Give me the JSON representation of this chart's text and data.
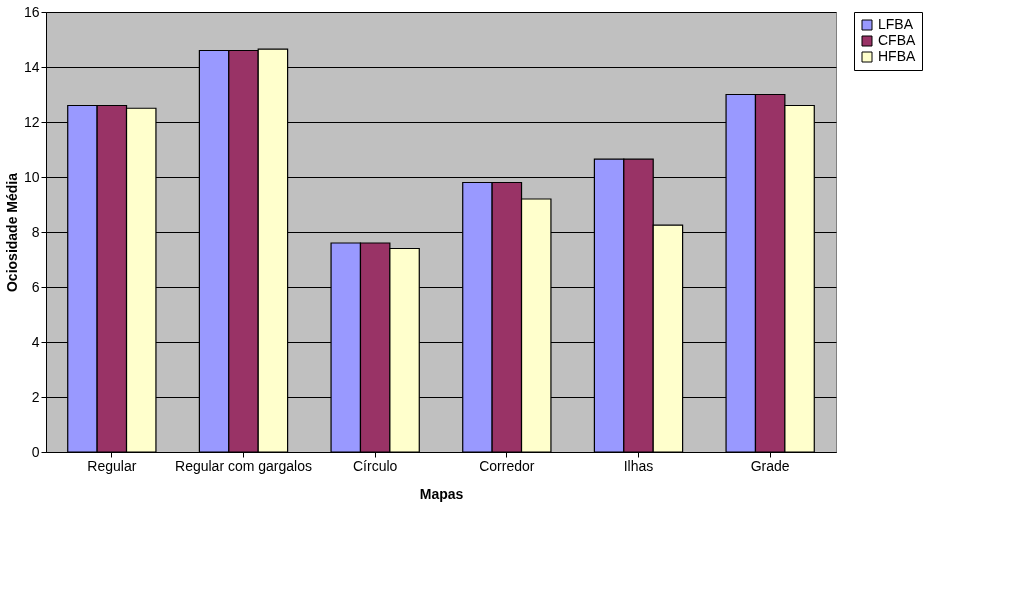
{
  "chart_data": {
    "type": "bar",
    "xlabel": "Mapas",
    "ylabel": "Ociosidade Média",
    "categories": [
      "Regular",
      "Regular com gargalos",
      "Círculo",
      "Corredor",
      "Ilhas",
      "Grade"
    ],
    "series": [
      {
        "name": "LFBA",
        "color": "#9999ff",
        "values": [
          12.6,
          14.6,
          7.6,
          9.8,
          10.65,
          13.0
        ]
      },
      {
        "name": "CFBA",
        "color": "#993366",
        "values": [
          12.6,
          14.6,
          7.6,
          9.8,
          10.65,
          13.0
        ]
      },
      {
        "name": "HFBA",
        "color": "#ffffcc",
        "values": [
          12.5,
          14.65,
          7.4,
          9.2,
          8.25,
          12.6
        ]
      }
    ],
    "ylim": [
      0,
      16
    ],
    "yticks": [
      0,
      2,
      4,
      6,
      8,
      10,
      12,
      14,
      16
    ],
    "grid": "y",
    "legend": "right"
  }
}
